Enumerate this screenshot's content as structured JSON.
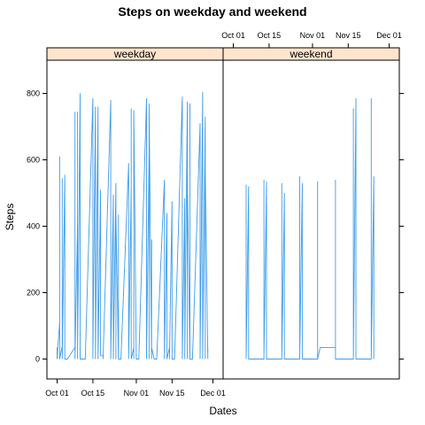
{
  "chart_data": {
    "type": "line",
    "title": "Steps on weekday and weekend",
    "xlabel": "Dates",
    "ylabel": "Steps",
    "x_domain": [
      "2012-09-28",
      "2012-12-04"
    ],
    "xlim": [
      "2012-09-27",
      "2012-12-05"
    ],
    "ylim": [
      -60,
      900
    ],
    "x_ticks": [
      {
        "date": "2012-10-01",
        "label": "Oct 01"
      },
      {
        "date": "2012-10-15",
        "label": "Oct 15"
      },
      {
        "date": "2012-11-01",
        "label": "Nov 01"
      },
      {
        "date": "2012-11-15",
        "label": "Nov 15"
      },
      {
        "date": "2012-12-01",
        "label": "Dec 01"
      }
    ],
    "y_ticks": [
      0,
      200,
      400,
      600,
      800
    ],
    "colors": {
      "line": "#3c9ce8",
      "strip": "#ffe5cc",
      "strip_border": "#000000",
      "panel_border": "#000000"
    },
    "panels": [
      {
        "label": "weekday",
        "values": [
          [
            "2012-10-01",
            35
          ],
          [
            "2012-10-01",
            0
          ],
          [
            "2012-10-02",
            115
          ],
          [
            "2012-10-02",
            0
          ],
          [
            "2012-10-02",
            610
          ],
          [
            "2012-10-02",
            0
          ],
          [
            "2012-10-03",
            40
          ],
          [
            "2012-10-03",
            545
          ],
          [
            "2012-10-03",
            0
          ],
          [
            "2012-10-04",
            555
          ],
          [
            "2012-10-04",
            0
          ],
          [
            "2012-10-05",
            0
          ],
          [
            "2012-10-08",
            35
          ],
          [
            "2012-10-08",
            745
          ],
          [
            "2012-10-08",
            0
          ],
          [
            "2012-10-09",
            410
          ],
          [
            "2012-10-09",
            35
          ],
          [
            "2012-10-09",
            745
          ],
          [
            "2012-10-09",
            0
          ],
          [
            "2012-10-10",
            800
          ],
          [
            "2012-10-10",
            0
          ],
          [
            "2012-10-11",
            0
          ],
          [
            "2012-10-12",
            0
          ],
          [
            "2012-10-15",
            785
          ],
          [
            "2012-10-15",
            0
          ],
          [
            "2012-10-16",
            760
          ],
          [
            "2012-10-16",
            0
          ],
          [
            "2012-10-17",
            745
          ],
          [
            "2012-10-17",
            0
          ],
          [
            "2012-10-17",
            760
          ],
          [
            "2012-10-17",
            0
          ],
          [
            "2012-10-18",
            510
          ],
          [
            "2012-10-18",
            10
          ],
          [
            "2012-10-19",
            10
          ],
          [
            "2012-10-19",
            0
          ],
          [
            "2012-10-22",
            780
          ],
          [
            "2012-10-22",
            0
          ],
          [
            "2012-10-23",
            495
          ],
          [
            "2012-10-23",
            0
          ],
          [
            "2012-10-24",
            530
          ],
          [
            "2012-10-24",
            0
          ],
          [
            "2012-10-24",
            440
          ],
          [
            "2012-10-25",
            0
          ],
          [
            "2012-10-25",
            435
          ],
          [
            "2012-10-25",
            0
          ],
          [
            "2012-10-26",
            0
          ],
          [
            "2012-10-29",
            590
          ],
          [
            "2012-10-29",
            0
          ],
          [
            "2012-10-30",
            520
          ],
          [
            "2012-10-30",
            0
          ],
          [
            "2012-10-30",
            755
          ],
          [
            "2012-10-30",
            0
          ],
          [
            "2012-10-31",
            35
          ],
          [
            "2012-10-31",
            0
          ],
          [
            "2012-10-31",
            750
          ],
          [
            "2012-11-01",
            0
          ],
          [
            "2012-11-02",
            0
          ],
          [
            "2012-11-05",
            785
          ],
          [
            "2012-11-05",
            0
          ],
          [
            "2012-11-06",
            625
          ],
          [
            "2012-11-06",
            0
          ],
          [
            "2012-11-06",
            770
          ],
          [
            "2012-11-07",
            0
          ],
          [
            "2012-11-07",
            360
          ],
          [
            "2012-11-07",
            35
          ],
          [
            "2012-11-08",
            0
          ],
          [
            "2012-11-09",
            0
          ],
          [
            "2012-11-12",
            540
          ],
          [
            "2012-11-12",
            0
          ],
          [
            "2012-11-13",
            440
          ],
          [
            "2012-11-13",
            35
          ],
          [
            "2012-11-13",
            0
          ],
          [
            "2012-11-14",
            35
          ],
          [
            "2012-11-14",
            0
          ],
          [
            "2012-11-15",
            475
          ],
          [
            "2012-11-15",
            0
          ],
          [
            "2012-11-16",
            0
          ],
          [
            "2012-11-19",
            790
          ],
          [
            "2012-11-19",
            0
          ],
          [
            "2012-11-20",
            485
          ],
          [
            "2012-11-20",
            0
          ],
          [
            "2012-11-21",
            775
          ],
          [
            "2012-11-21",
            0
          ],
          [
            "2012-11-21",
            565
          ],
          [
            "2012-11-22",
            0
          ],
          [
            "2012-11-22",
            770
          ],
          [
            "2012-11-22",
            0
          ],
          [
            "2012-11-23",
            0
          ],
          [
            "2012-11-26",
            710
          ],
          [
            "2012-11-26",
            0
          ],
          [
            "2012-11-27",
            805
          ],
          [
            "2012-11-27",
            0
          ],
          [
            "2012-11-28",
            730
          ],
          [
            "2012-11-28",
            0
          ],
          [
            "2012-11-28",
            570
          ],
          [
            "2012-11-29",
            0
          ],
          [
            "2012-11-29",
            35
          ]
        ]
      },
      {
        "label": "weekend",
        "values": [
          [
            "2012-10-06",
            0
          ],
          [
            "2012-10-06",
            525
          ],
          [
            "2012-10-06",
            0
          ],
          [
            "2012-10-07",
            520
          ],
          [
            "2012-10-07",
            0
          ],
          [
            "2012-10-13",
            0
          ],
          [
            "2012-10-13",
            540
          ],
          [
            "2012-10-13",
            0
          ],
          [
            "2012-10-14",
            535
          ],
          [
            "2012-10-14",
            0
          ],
          [
            "2012-10-20",
            0
          ],
          [
            "2012-10-20",
            530
          ],
          [
            "2012-10-20",
            0
          ],
          [
            "2012-10-21",
            500
          ],
          [
            "2012-10-21",
            0
          ],
          [
            "2012-10-27",
            0
          ],
          [
            "2012-10-27",
            550
          ],
          [
            "2012-10-27",
            0
          ],
          [
            "2012-10-28",
            530
          ],
          [
            "2012-10-28",
            0
          ],
          [
            "2012-11-03",
            0
          ],
          [
            "2012-11-03",
            535
          ],
          [
            "2012-11-03",
            0
          ],
          [
            "2012-11-04",
            35
          ],
          [
            "2012-11-08",
            35
          ],
          [
            "2012-11-10",
            35
          ],
          [
            "2012-11-10",
            540
          ],
          [
            "2012-11-10",
            0
          ],
          [
            "2012-11-11",
            0
          ],
          [
            "2012-11-17",
            0
          ],
          [
            "2012-11-17",
            755
          ],
          [
            "2012-11-17",
            0
          ],
          [
            "2012-11-18",
            785
          ],
          [
            "2012-11-18",
            0
          ],
          [
            "2012-11-24",
            0
          ],
          [
            "2012-11-24",
            785
          ],
          [
            "2012-11-24",
            0
          ],
          [
            "2012-11-25",
            550
          ],
          [
            "2012-11-25",
            0
          ]
        ]
      }
    ]
  }
}
